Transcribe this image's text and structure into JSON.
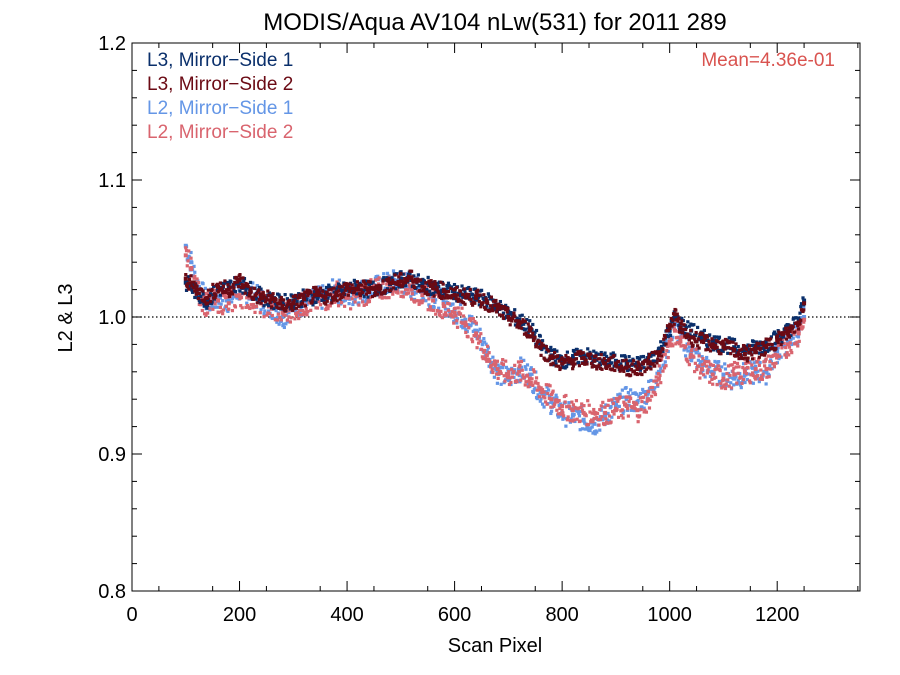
{
  "chart_data": {
    "type": "scatter",
    "title": "MODIS/Aqua AV104 nLw(531) for 2011 289",
    "xlabel": "Scan Pixel",
    "ylabel": "L2 & L3",
    "xlim": [
      0,
      1354
    ],
    "ylim": [
      0.8,
      1.2
    ],
    "xticks": [
      "0",
      "200",
      "400",
      "600",
      "800",
      "1000",
      "1200"
    ],
    "yticks": [
      "0.8",
      "0.9",
      "1.0",
      "1.1",
      "1.2"
    ],
    "reference_line": 1.0,
    "annotation": "Mean=4.36e-01",
    "annotation_color": "#d9534f",
    "legend_position": "top-left",
    "series": [
      {
        "name": "L3, Mirror−Side 1",
        "color": "#0a2f6b",
        "x": [
          100,
          120,
          140,
          160,
          180,
          200,
          220,
          240,
          260,
          280,
          300,
          320,
          340,
          360,
          380,
          400,
          420,
          440,
          460,
          480,
          500,
          520,
          540,
          560,
          580,
          600,
          620,
          640,
          660,
          680,
          700,
          720,
          740,
          760,
          780,
          800,
          820,
          840,
          860,
          880,
          900,
          920,
          940,
          960,
          980,
          1000,
          1010,
          1020,
          1040,
          1060,
          1080,
          1100,
          1120,
          1140,
          1160,
          1180,
          1200,
          1220,
          1240,
          1250
        ],
        "y": [
          1.025,
          1.018,
          1.012,
          1.02,
          1.022,
          1.025,
          1.02,
          1.015,
          1.012,
          1.01,
          1.012,
          1.014,
          1.015,
          1.017,
          1.018,
          1.02,
          1.022,
          1.02,
          1.022,
          1.024,
          1.028,
          1.027,
          1.024,
          1.022,
          1.02,
          1.018,
          1.016,
          1.015,
          1.012,
          1.008,
          1.002,
          0.998,
          0.992,
          0.98,
          0.972,
          0.968,
          0.97,
          0.972,
          0.97,
          0.968,
          0.968,
          0.966,
          0.965,
          0.968,
          0.975,
          0.99,
          1.0,
          0.995,
          0.99,
          0.985,
          0.982,
          0.98,
          0.978,
          0.975,
          0.978,
          0.98,
          0.985,
          0.99,
          0.998,
          1.012
        ]
      },
      {
        "name": "L3, Mirror−Side 2",
        "color": "#6b0a14",
        "x": [
          100,
          120,
          140,
          160,
          180,
          200,
          220,
          240,
          260,
          280,
          300,
          320,
          340,
          360,
          380,
          400,
          420,
          440,
          460,
          480,
          500,
          520,
          540,
          560,
          580,
          600,
          620,
          640,
          660,
          680,
          700,
          720,
          740,
          760,
          780,
          800,
          820,
          840,
          860,
          880,
          900,
          920,
          940,
          960,
          980,
          1000,
          1010,
          1020,
          1040,
          1060,
          1080,
          1100,
          1120,
          1140,
          1160,
          1180,
          1200,
          1220,
          1240,
          1250
        ],
        "y": [
          1.028,
          1.02,
          1.014,
          1.022,
          1.02,
          1.027,
          1.018,
          1.014,
          1.013,
          1.008,
          1.01,
          1.013,
          1.016,
          1.015,
          1.017,
          1.021,
          1.02,
          1.021,
          1.02,
          1.025,
          1.026,
          1.029,
          1.022,
          1.021,
          1.019,
          1.016,
          1.015,
          1.014,
          1.011,
          1.006,
          1.0,
          0.995,
          0.99,
          0.978,
          0.97,
          0.966,
          0.968,
          0.97,
          0.968,
          0.966,
          0.966,
          0.963,
          0.962,
          0.966,
          0.972,
          0.992,
          1.002,
          0.992,
          0.985,
          0.982,
          0.98,
          0.978,
          0.976,
          0.973,
          0.975,
          0.978,
          0.983,
          0.988,
          0.996,
          1.01
        ]
      },
      {
        "name": "L2, Mirror−Side 1",
        "color": "#6496e6",
        "x": [
          100,
          110,
          120,
          140,
          160,
          180,
          200,
          220,
          240,
          260,
          280,
          300,
          320,
          340,
          360,
          380,
          400,
          420,
          440,
          460,
          480,
          500,
          520,
          540,
          560,
          580,
          600,
          620,
          640,
          660,
          680,
          700,
          720,
          740,
          760,
          780,
          800,
          820,
          840,
          860,
          880,
          900,
          920,
          940,
          960,
          980,
          1000,
          1010,
          1020,
          1040,
          1060,
          1080,
          1100,
          1120,
          1140,
          1160,
          1180,
          1200,
          1220,
          1240,
          1250
        ],
        "y": [
          1.052,
          1.04,
          1.025,
          1.01,
          1.015,
          1.012,
          1.02,
          1.018,
          1.012,
          1.008,
          1.0,
          1.008,
          1.01,
          1.012,
          1.015,
          1.02,
          1.015,
          1.018,
          1.02,
          1.022,
          1.025,
          1.026,
          1.022,
          1.018,
          1.015,
          1.01,
          1.005,
          0.998,
          0.99,
          0.975,
          0.96,
          0.955,
          0.962,
          0.958,
          0.945,
          0.938,
          0.93,
          0.928,
          0.925,
          0.922,
          0.928,
          0.935,
          0.94,
          0.938,
          0.945,
          0.96,
          0.985,
          0.995,
          0.985,
          0.975,
          0.965,
          0.96,
          0.958,
          0.955,
          0.958,
          0.96,
          0.96,
          0.975,
          0.982,
          0.99,
          1.0
        ]
      },
      {
        "name": "L2, Mirror−Side 2",
        "color": "#d9646e",
        "x": [
          100,
          110,
          120,
          140,
          160,
          180,
          200,
          220,
          240,
          260,
          280,
          300,
          320,
          340,
          360,
          380,
          400,
          420,
          440,
          460,
          480,
          500,
          520,
          540,
          560,
          580,
          600,
          620,
          640,
          660,
          680,
          700,
          720,
          740,
          760,
          780,
          800,
          820,
          840,
          860,
          880,
          900,
          920,
          940,
          960,
          980,
          1000,
          1010,
          1020,
          1040,
          1060,
          1080,
          1100,
          1120,
          1140,
          1160,
          1180,
          1200,
          1220,
          1240,
          1250
        ],
        "y": [
          1.045,
          1.035,
          1.02,
          1.008,
          1.012,
          1.01,
          1.016,
          1.014,
          1.01,
          1.006,
          1.003,
          1.006,
          1.009,
          1.011,
          1.013,
          1.018,
          1.014,
          1.016,
          1.018,
          1.02,
          1.023,
          1.024,
          1.02,
          1.016,
          1.012,
          1.008,
          1.003,
          0.996,
          0.988,
          0.972,
          0.962,
          0.958,
          0.96,
          0.955,
          0.948,
          0.94,
          0.935,
          0.932,
          0.93,
          0.93,
          0.93,
          0.932,
          0.935,
          0.932,
          0.94,
          0.955,
          0.982,
          0.99,
          0.982,
          0.972,
          0.962,
          0.958,
          0.955,
          0.958,
          0.96,
          0.962,
          0.962,
          0.972,
          0.98,
          0.988,
          0.998
        ]
      }
    ]
  }
}
